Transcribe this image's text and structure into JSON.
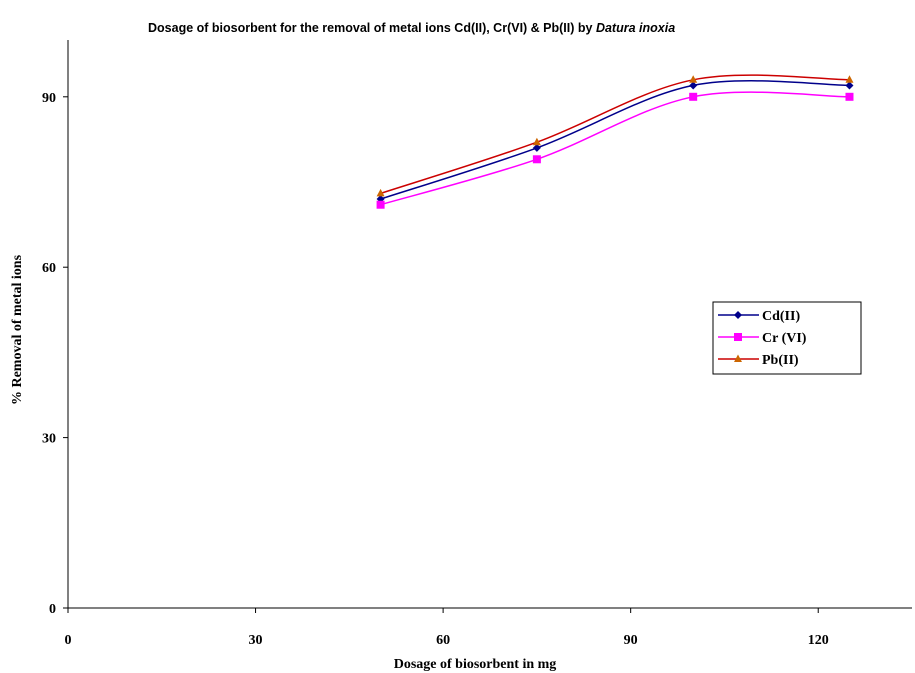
{
  "chart_data": {
    "type": "line",
    "title": "Dosage of biosorbent for the removal of metal ions Cd(II), Cr(VI) & Pb(II) by ",
    "title_italic": "Datura inoxia",
    "xlabel": "Dosage of biosorbent in mg",
    "ylabel": "% Removal of metal ions",
    "xlim": [
      0,
      135
    ],
    "ylim": [
      0,
      100
    ],
    "xticks": [
      0,
      30,
      60,
      90,
      120
    ],
    "yticks": [
      0,
      30,
      60,
      90
    ],
    "grid": false,
    "legend": "right",
    "smooth": true,
    "x": [
      50,
      75,
      100,
      125
    ],
    "series": [
      {
        "name": "Cd(II)",
        "values": [
          72,
          81,
          92,
          92
        ],
        "color": "#00008b",
        "marker": "diamond"
      },
      {
        "name": "Cr (VI)",
        "values": [
          71,
          79,
          90,
          90
        ],
        "color": "#ff00ff",
        "marker": "square"
      },
      {
        "name": "Pb(II)",
        "values": [
          73,
          82,
          93,
          93
        ],
        "color": "#cc0000",
        "marker_color": "#cc6600",
        "marker": "triangle"
      }
    ]
  }
}
